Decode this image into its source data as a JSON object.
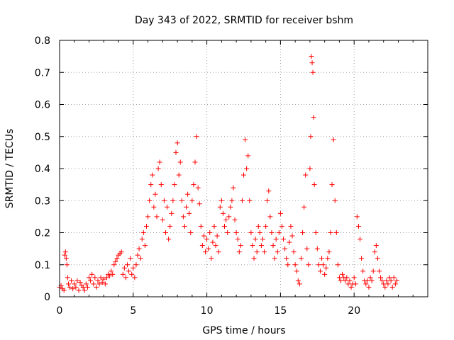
{
  "chart_data": {
    "type": "scatter",
    "title": "Day 343 of 2022, SRMTID for receiver bshm",
    "xlabel": "GPS time / hours",
    "ylabel": "SRMTID / TECUs",
    "xlim": [
      0,
      25
    ],
    "ylim": [
      0,
      0.8
    ],
    "xticks": [
      0,
      5,
      10,
      15,
      20
    ],
    "xtick_labels": [
      "0",
      "5",
      "10",
      "15",
      "20"
    ],
    "yticks": [
      0,
      0.1,
      0.2,
      0.3,
      0.4,
      0.5,
      0.6,
      0.7,
      0.8
    ],
    "ytick_labels": [
      "0",
      "0.1",
      "0.2",
      "0.3",
      "0.4",
      "0.5",
      "0.6",
      "0.7",
      "0.8"
    ],
    "grid": true,
    "marker": "+",
    "colors": {
      "points": "#ff0000",
      "grid": "#a0a0a0",
      "axes": "#000000"
    },
    "series": [
      {
        "name": "SRMTID",
        "points": [
          [
            0.0,
            0.03
          ],
          [
            0.1,
            0.035
          ],
          [
            0.2,
            0.025
          ],
          [
            0.3,
            0.02
          ],
          [
            0.35,
            0.13
          ],
          [
            0.4,
            0.14
          ],
          [
            0.45,
            0.12
          ],
          [
            0.5,
            0.1
          ],
          [
            0.55,
            0.06
          ],
          [
            0.6,
            0.04
          ],
          [
            0.7,
            0.03
          ],
          [
            0.8,
            0.05
          ],
          [
            0.9,
            0.025
          ],
          [
            1.0,
            0.04
          ],
          [
            1.1,
            0.03
          ],
          [
            1.2,
            0.05
          ],
          [
            1.3,
            0.02
          ],
          [
            1.4,
            0.045
          ],
          [
            1.5,
            0.035
          ],
          [
            1.6,
            0.03
          ],
          [
            1.7,
            0.02
          ],
          [
            1.8,
            0.04
          ],
          [
            1.9,
            0.03
          ],
          [
            2.0,
            0.06
          ],
          [
            2.1,
            0.05
          ],
          [
            2.2,
            0.07
          ],
          [
            2.3,
            0.04
          ],
          [
            2.4,
            0.06
          ],
          [
            2.5,
            0.03
          ],
          [
            2.6,
            0.05
          ],
          [
            2.7,
            0.04
          ],
          [
            2.8,
            0.06
          ],
          [
            2.9,
            0.045
          ],
          [
            3.0,
            0.055
          ],
          [
            3.1,
            0.04
          ],
          [
            3.2,
            0.06
          ],
          [
            3.3,
            0.07
          ],
          [
            3.4,
            0.065
          ],
          [
            3.5,
            0.08
          ],
          [
            3.6,
            0.07
          ],
          [
            3.7,
            0.1
          ],
          [
            3.8,
            0.11
          ],
          [
            3.9,
            0.12
          ],
          [
            4.0,
            0.13
          ],
          [
            4.1,
            0.135
          ],
          [
            4.2,
            0.14
          ],
          [
            4.3,
            0.07
          ],
          [
            4.4,
            0.09
          ],
          [
            4.5,
            0.06
          ],
          [
            4.6,
            0.1
          ],
          [
            4.7,
            0.08
          ],
          [
            4.8,
            0.12
          ],
          [
            4.9,
            0.07
          ],
          [
            5.0,
            0.09
          ],
          [
            5.1,
            0.06
          ],
          [
            5.2,
            0.1
          ],
          [
            5.3,
            0.13
          ],
          [
            5.4,
            0.15
          ],
          [
            5.5,
            0.12
          ],
          [
            5.6,
            0.18
          ],
          [
            5.7,
            0.2
          ],
          [
            5.8,
            0.16
          ],
          [
            5.9,
            0.22
          ],
          [
            6.0,
            0.25
          ],
          [
            6.1,
            0.3
          ],
          [
            6.2,
            0.35
          ],
          [
            6.3,
            0.38
          ],
          [
            6.4,
            0.28
          ],
          [
            6.5,
            0.32
          ],
          [
            6.6,
            0.25
          ],
          [
            6.7,
            0.4
          ],
          [
            6.8,
            0.42
          ],
          [
            6.9,
            0.35
          ],
          [
            7.0,
            0.24
          ],
          [
            7.1,
            0.3
          ],
          [
            7.2,
            0.2
          ],
          [
            7.3,
            0.28
          ],
          [
            7.4,
            0.18
          ],
          [
            7.5,
            0.22
          ],
          [
            7.6,
            0.26
          ],
          [
            7.7,
            0.3
          ],
          [
            7.8,
            0.35
          ],
          [
            7.9,
            0.45
          ],
          [
            8.0,
            0.48
          ],
          [
            8.1,
            0.38
          ],
          [
            8.2,
            0.42
          ],
          [
            8.3,
            0.3
          ],
          [
            8.4,
            0.25
          ],
          [
            8.5,
            0.22
          ],
          [
            8.6,
            0.28
          ],
          [
            8.7,
            0.32
          ],
          [
            8.8,
            0.26
          ],
          [
            8.9,
            0.2
          ],
          [
            9.0,
            0.3
          ],
          [
            9.1,
            0.35
          ],
          [
            9.2,
            0.42
          ],
          [
            9.3,
            0.5
          ],
          [
            9.4,
            0.34
          ],
          [
            9.5,
            0.29
          ],
          [
            9.6,
            0.22
          ],
          [
            9.7,
            0.16
          ],
          [
            9.8,
            0.19
          ],
          [
            9.9,
            0.14
          ],
          [
            10.0,
            0.18
          ],
          [
            10.1,
            0.15
          ],
          [
            10.2,
            0.2
          ],
          [
            10.3,
            0.12
          ],
          [
            10.4,
            0.17
          ],
          [
            10.5,
            0.22
          ],
          [
            10.6,
            0.16
          ],
          [
            10.7,
            0.19
          ],
          [
            10.8,
            0.14
          ],
          [
            10.9,
            0.28
          ],
          [
            11.0,
            0.3
          ],
          [
            11.1,
            0.26
          ],
          [
            11.2,
            0.22
          ],
          [
            11.3,
            0.24
          ],
          [
            11.4,
            0.2
          ],
          [
            11.5,
            0.25
          ],
          [
            11.6,
            0.28
          ],
          [
            11.7,
            0.3
          ],
          [
            11.8,
            0.34
          ],
          [
            11.9,
            0.24
          ],
          [
            12.0,
            0.2
          ],
          [
            12.1,
            0.18
          ],
          [
            12.2,
            0.14
          ],
          [
            12.3,
            0.16
          ],
          [
            12.4,
            0.3
          ],
          [
            12.5,
            0.38
          ],
          [
            12.6,
            0.49
          ],
          [
            12.7,
            0.4
          ],
          [
            12.8,
            0.44
          ],
          [
            12.9,
            0.3
          ],
          [
            13.0,
            0.2
          ],
          [
            13.1,
            0.16
          ],
          [
            13.2,
            0.12
          ],
          [
            13.3,
            0.18
          ],
          [
            13.4,
            0.14
          ],
          [
            13.5,
            0.22
          ],
          [
            13.6,
            0.2
          ],
          [
            13.7,
            0.16
          ],
          [
            13.8,
            0.18
          ],
          [
            13.9,
            0.14
          ],
          [
            14.0,
            0.22
          ],
          [
            14.1,
            0.3
          ],
          [
            14.2,
            0.33
          ],
          [
            14.3,
            0.25
          ],
          [
            14.4,
            0.2
          ],
          [
            14.5,
            0.16
          ],
          [
            14.6,
            0.12
          ],
          [
            14.7,
            0.18
          ],
          [
            14.8,
            0.14
          ],
          [
            14.9,
            0.2
          ],
          [
            15.0,
            0.26
          ],
          [
            15.1,
            0.22
          ],
          [
            15.2,
            0.18
          ],
          [
            15.3,
            0.15
          ],
          [
            15.4,
            0.12
          ],
          [
            15.5,
            0.1
          ],
          [
            15.6,
            0.17
          ],
          [
            15.7,
            0.22
          ],
          [
            15.8,
            0.19
          ],
          [
            15.9,
            0.14
          ],
          [
            16.0,
            0.1
          ],
          [
            16.1,
            0.08
          ],
          [
            16.2,
            0.05
          ],
          [
            16.3,
            0.04
          ],
          [
            16.4,
            0.12
          ],
          [
            16.5,
            0.2
          ],
          [
            16.6,
            0.28
          ],
          [
            16.7,
            0.38
          ],
          [
            16.8,
            0.15
          ],
          [
            16.9,
            0.1
          ],
          [
            17.0,
            0.4
          ],
          [
            17.05,
            0.5
          ],
          [
            17.1,
            0.75
          ],
          [
            17.15,
            0.73
          ],
          [
            17.2,
            0.7
          ],
          [
            17.25,
            0.56
          ],
          [
            17.3,
            0.35
          ],
          [
            17.4,
            0.2
          ],
          [
            17.5,
            0.15
          ],
          [
            17.6,
            0.1
          ],
          [
            17.7,
            0.08
          ],
          [
            17.8,
            0.12
          ],
          [
            17.9,
            0.1
          ],
          [
            18.0,
            0.07
          ],
          [
            18.1,
            0.09
          ],
          [
            18.2,
            0.12
          ],
          [
            18.3,
            0.14
          ],
          [
            18.4,
            0.2
          ],
          [
            18.5,
            0.35
          ],
          [
            18.6,
            0.49
          ],
          [
            18.7,
            0.3
          ],
          [
            18.8,
            0.2
          ],
          [
            18.9,
            0.1
          ],
          [
            19.0,
            0.06
          ],
          [
            19.1,
            0.05
          ],
          [
            19.2,
            0.07
          ],
          [
            19.3,
            0.06
          ],
          [
            19.4,
            0.05
          ],
          [
            19.5,
            0.06
          ],
          [
            19.6,
            0.04
          ],
          [
            19.7,
            0.05
          ],
          [
            19.8,
            0.03
          ],
          [
            19.9,
            0.04
          ],
          [
            20.0,
            0.06
          ],
          [
            20.1,
            0.04
          ],
          [
            20.2,
            0.25
          ],
          [
            20.3,
            0.22
          ],
          [
            20.4,
            0.18
          ],
          [
            20.5,
            0.12
          ],
          [
            20.6,
            0.08
          ],
          [
            20.7,
            0.05
          ],
          [
            20.8,
            0.04
          ],
          [
            20.9,
            0.05
          ],
          [
            21.0,
            0.03
          ],
          [
            21.1,
            0.06
          ],
          [
            21.2,
            0.05
          ],
          [
            21.3,
            0.08
          ],
          [
            21.4,
            0.14
          ],
          [
            21.5,
            0.16
          ],
          [
            21.6,
            0.12
          ],
          [
            21.7,
            0.08
          ],
          [
            21.8,
            0.06
          ],
          [
            21.9,
            0.05
          ],
          [
            22.0,
            0.04
          ],
          [
            22.1,
            0.03
          ],
          [
            22.2,
            0.05
          ],
          [
            22.3,
            0.04
          ],
          [
            22.4,
            0.06
          ],
          [
            22.5,
            0.05
          ],
          [
            22.6,
            0.03
          ],
          [
            22.7,
            0.06
          ],
          [
            22.8,
            0.04
          ],
          [
            22.9,
            0.05
          ]
        ]
      }
    ]
  }
}
